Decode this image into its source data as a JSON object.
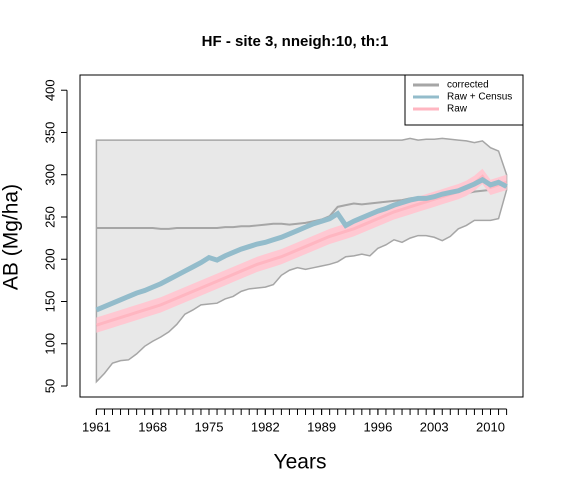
{
  "chart_data": {
    "type": "line",
    "title": "HF - site 3, nneigh:10, th:1",
    "x_label": "Years",
    "y_label": "AB (Mg/ha)",
    "x": [
      1961,
      1962,
      1963,
      1964,
      1965,
      1966,
      1967,
      1968,
      1969,
      1970,
      1971,
      1972,
      1973,
      1974,
      1975,
      1976,
      1977,
      1978,
      1979,
      1980,
      1981,
      1982,
      1983,
      1984,
      1985,
      1986,
      1987,
      1988,
      1989,
      1990,
      1991,
      1992,
      1993,
      1994,
      1995,
      1996,
      1997,
      1998,
      1999,
      2000,
      2001,
      2002,
      2003,
      2004,
      2005,
      2006,
      2007,
      2008,
      2009,
      2010,
      2011,
      2012
    ],
    "xlim": [
      1958.96,
      2014.04
    ],
    "xticks": [
      1961,
      1968,
      1975,
      1982,
      1989,
      1996,
      2003,
      2010
    ],
    "ylim": [
      37,
      418
    ],
    "yticks": [
      50,
      100,
      150,
      200,
      250,
      300,
      350,
      400
    ],
    "legend": "topright",
    "series": [
      {
        "name": "corrected",
        "color": "#a6a6a6",
        "band_color": "#e8e8e8",
        "values": [
          237,
          237,
          237,
          237,
          237,
          237,
          237,
          237,
          236,
          236,
          237,
          237,
          237,
          237,
          237,
          237,
          238,
          238,
          239,
          239,
          240,
          241,
          242,
          242,
          241,
          242,
          243,
          245,
          247,
          251,
          262,
          264,
          266,
          265,
          266,
          267,
          268,
          269,
          270,
          272,
          273,
          273,
          274,
          274,
          275,
          277,
          278,
          280,
          281,
          282,
          281,
          285
        ],
        "lower": [
          55,
          65,
          77,
          80,
          81,
          88,
          97,
          103,
          108,
          114,
          123,
          135,
          140,
          146,
          147,
          148,
          153,
          156,
          162,
          165,
          166,
          167,
          170,
          181,
          187,
          190,
          188,
          190,
          192,
          194,
          197,
          203,
          204,
          206,
          204,
          213,
          217,
          223,
          220,
          225,
          228,
          228,
          226,
          222,
          227,
          236,
          240,
          246,
          246,
          246,
          248,
          282
        ],
        "upper": [
          341,
          341,
          341,
          341,
          341,
          341,
          341,
          341,
          341,
          341,
          341,
          341,
          341,
          341,
          341,
          341,
          341,
          341,
          341,
          341,
          341,
          341,
          341,
          341,
          341,
          341,
          341,
          341,
          341,
          341,
          341,
          341,
          341,
          341,
          341,
          341,
          341,
          341,
          341,
          343,
          341,
          342,
          342,
          343,
          342,
          341,
          340,
          338,
          340,
          332,
          328,
          300
        ]
      },
      {
        "name": "Raw + Census",
        "color": "#93bccb",
        "values": [
          140,
          144,
          148,
          152,
          156,
          160,
          163,
          167,
          171,
          176,
          181,
          186,
          191,
          196,
          202,
          199,
          204,
          208,
          212,
          215,
          218,
          220,
          223,
          226,
          230,
          234,
          238,
          242,
          245,
          248,
          254,
          240,
          245,
          249,
          253,
          257,
          260,
          264,
          267,
          270,
          272,
          272,
          274,
          277,
          279,
          281,
          285,
          289,
          294,
          288,
          291,
          286
        ]
      },
      {
        "name": "Raw",
        "color": "#ffb6c1",
        "band_color": "#ffc8d2",
        "values": [
          122,
          125,
          128,
          131,
          134,
          137,
          140,
          143,
          146,
          150,
          154,
          158,
          162,
          166,
          170,
          174,
          178,
          182,
          186,
          190,
          194,
          197,
          200,
          203,
          207,
          211,
          215,
          219,
          223,
          227,
          230,
          233,
          236,
          240,
          244,
          248,
          252,
          256,
          259,
          262,
          265,
          268,
          271,
          274,
          277,
          280,
          284,
          290,
          298,
          285,
          288,
          291
        ],
        "lower": [
          113,
          116,
          119,
          122,
          125,
          128,
          131,
          134,
          137,
          141,
          145,
          149,
          153,
          157,
          161,
          165,
          169,
          173,
          177,
          181,
          185,
          188,
          191,
          194,
          198,
          202,
          206,
          210,
          214,
          218,
          221,
          224,
          227,
          231,
          235,
          239,
          243,
          247,
          250,
          253,
          256,
          259,
          262,
          265,
          268,
          271,
          275,
          281,
          289,
          276,
          279,
          282
        ],
        "upper": [
          131,
          134,
          137,
          140,
          143,
          146,
          149,
          152,
          155,
          159,
          163,
          167,
          171,
          175,
          179,
          183,
          187,
          191,
          195,
          199,
          203,
          206,
          209,
          212,
          216,
          220,
          224,
          228,
          232,
          236,
          239,
          242,
          245,
          249,
          253,
          257,
          261,
          265,
          268,
          271,
          274,
          277,
          280,
          283,
          286,
          289,
          293,
          299,
          307,
          294,
          297,
          300
        ]
      }
    ]
  }
}
